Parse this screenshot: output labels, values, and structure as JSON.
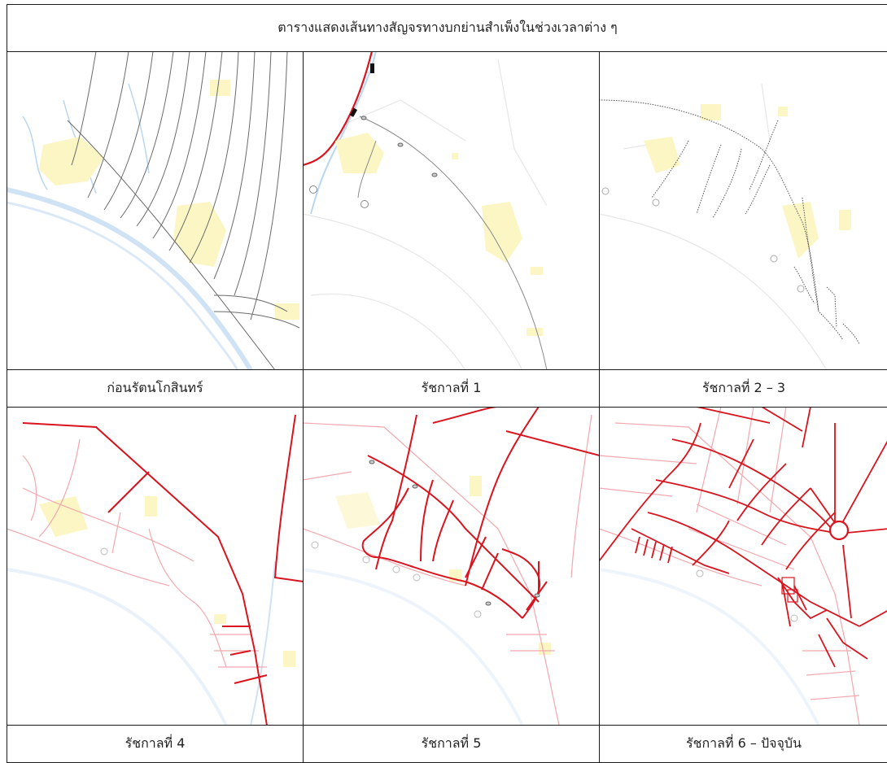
{
  "table": {
    "title": "ตารางแสดงเส้นทางสัญจรทางบกย่านสำเพ็งในช่วงเวลาต่าง ๆ",
    "captions": [
      "ก่อนรัตนโกสินทร์",
      "รัชกาลที่ 1",
      "รัชกาลที่ 2 – 3",
      "รัชกาลที่ 4",
      "รัชกาลที่ 5",
      "รัชกาลที่ 6 – ปัจจุบัน"
    ]
  },
  "colors": {
    "river": "#cfe3f5",
    "canal": "#b9d7f0",
    "building": "#fbf6c4",
    "old_path": "#6b6b6b",
    "road_new": "#d9141e",
    "road_old": "#f2a8ae",
    "base": "#e6e6e6"
  },
  "icons": {
    "gate": "gate-marker-icon",
    "fort": "fort-circle-icon"
  }
}
